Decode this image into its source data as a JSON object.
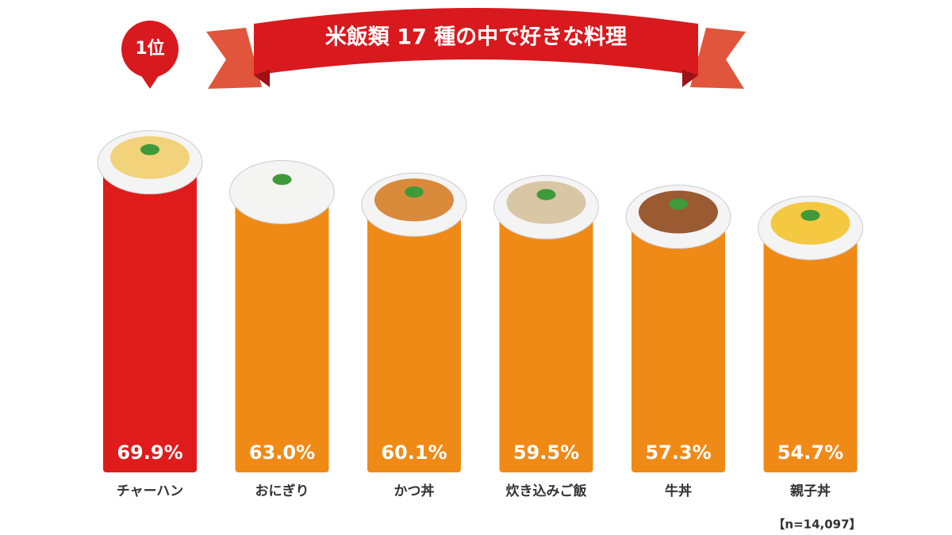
{
  "chart_data": {
    "type": "bar",
    "title": "米飯類 17 種の中で好きな料理",
    "badge": "1位",
    "note": "【n=14,097】",
    "categories": [
      "チャーハン",
      "おにぎり",
      "かつ丼",
      "炊き込みご飯",
      "牛丼",
      "親子丼"
    ],
    "values": [
      69.9,
      63.0,
      60.1,
      59.5,
      57.3,
      54.7
    ],
    "value_labels": [
      "69.9%",
      "63.0%",
      "60.1%",
      "59.5%",
      "57.3%",
      "54.7%"
    ],
    "colors": [
      "#e01b1b",
      "#f08a17",
      "#f08a17",
      "#f08a17",
      "#f08a17",
      "#f08a17"
    ],
    "ylim": [
      0,
      75
    ]
  }
}
